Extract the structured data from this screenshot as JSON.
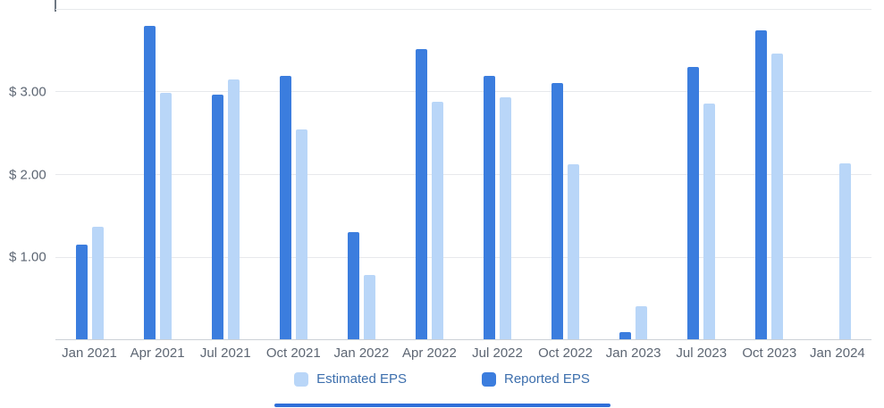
{
  "chart_data": {
    "type": "bar",
    "title": "",
    "categories": [
      "Jan 2021",
      "Apr 2021",
      "Jul 2021",
      "Oct 2021",
      "Jan 2022",
      "Apr 2022",
      "Jul 2022",
      "Oct 2022",
      "Jan 2023",
      "Jul 2023",
      "Oct 2023",
      "Jan 2024"
    ],
    "series": [
      {
        "name": "Reported EPS",
        "color": "#3b7dde",
        "values": [
          1.15,
          3.8,
          2.97,
          3.19,
          1.31,
          3.52,
          3.19,
          3.11,
          0.1,
          3.3,
          3.74,
          null
        ]
      },
      {
        "name": "Estimated EPS",
        "color": "#b9d6f8",
        "values": [
          1.37,
          2.99,
          3.15,
          2.55,
          0.79,
          2.88,
          2.93,
          2.12,
          0.41,
          2.86,
          3.46,
          2.14
        ]
      }
    ],
    "ylim": [
      0,
      4
    ],
    "yticks": [
      1,
      2,
      3
    ],
    "ytick_labels": [
      "$ 1.00",
      "$ 2.00",
      "$ 3.00"
    ],
    "grid": true,
    "legend_position": "bottom",
    "legend": [
      {
        "label": "Estimated EPS",
        "color": "#b9d6f8"
      },
      {
        "label": "Reported EPS",
        "color": "#3b7dde"
      }
    ]
  },
  "colors": {
    "reported_bar": "#3b7dde",
    "estimated_bar": "#b9d6f8",
    "gridline": "#e7e9ec",
    "axis_line": "#ccd1d7",
    "axis_text": "#5d6673",
    "legend_text": "#3d6fad",
    "slider": "#2f6fd9",
    "axis_tick": "#6f7883",
    "background": "#ffffff"
  }
}
